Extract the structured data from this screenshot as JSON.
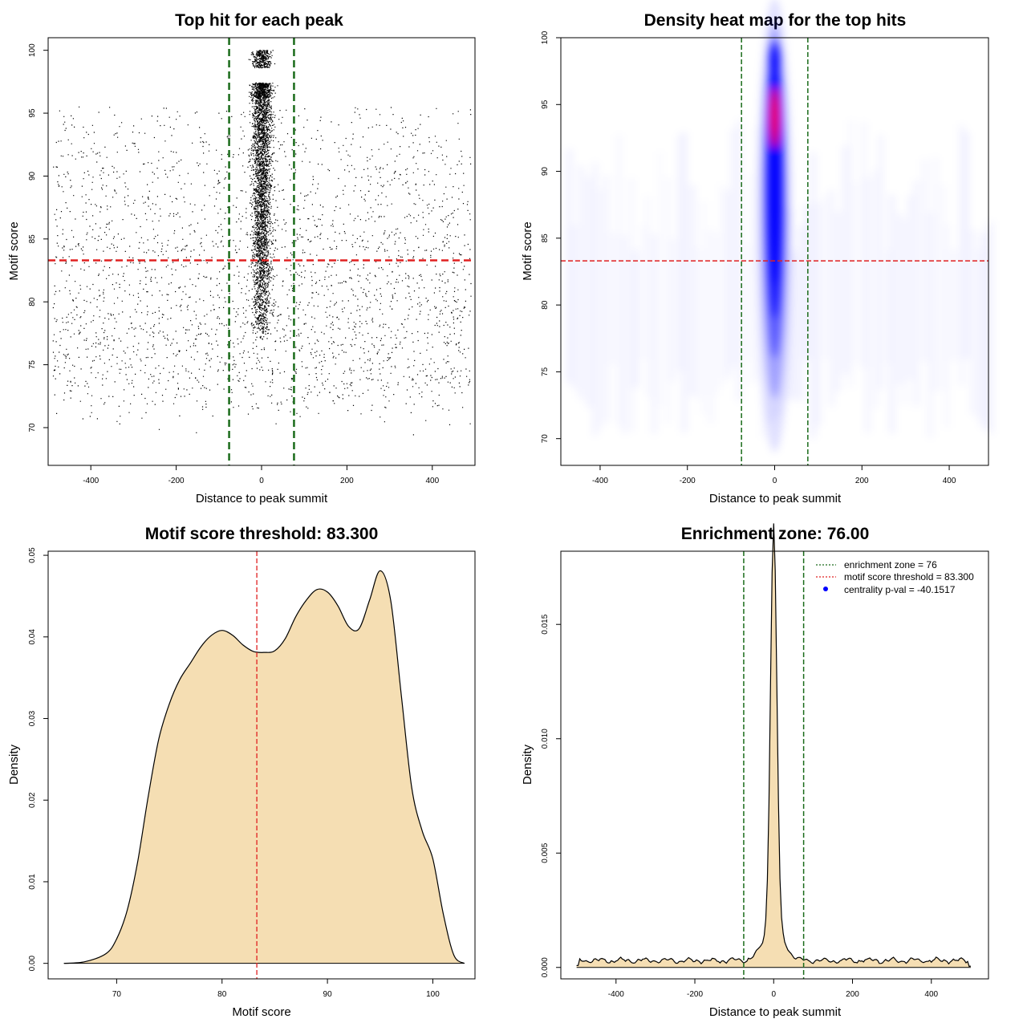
{
  "colors": {
    "points": "#000000",
    "threshold_line": "#e02020",
    "zone_line": "#1a6b1a",
    "density_fill": "#f5deb3",
    "heat_low": "#ffffff",
    "heat_mid": "#0000ff",
    "heat_high": "#ff0000",
    "legend_dot": "#0000ff"
  },
  "chart_data": [
    {
      "type": "scatter",
      "title": "Top hit for each peak",
      "xlabel": "Distance to peak summit",
      "ylabel": "Motif score",
      "xlim": [
        -500,
        500
      ],
      "ylim": [
        67,
        101
      ],
      "xticks": [
        -400,
        -200,
        0,
        200,
        400
      ],
      "yticks": [
        70,
        75,
        80,
        85,
        90,
        95,
        100
      ],
      "hlines": [
        83.3
      ],
      "vlines": [
        -76,
        76
      ],
      "grid": false,
      "approx_point_count": 6500,
      "description_background": "uniform scatter over distance -490..490, motif score ~68..95, denser below 84",
      "description_center": "dense column at distance 0 (sd ~12), motif score ~77..100"
    },
    {
      "type": "heatmap",
      "title": "Density heat map for the top hits",
      "xlabel": "Distance to peak summit",
      "ylabel": "Motif score",
      "xlim": [
        -490,
        490
      ],
      "ylim": [
        68,
        100
      ],
      "xticks": [
        -400,
        -200,
        0,
        200,
        400
      ],
      "yticks": [
        70,
        75,
        80,
        85,
        90,
        95,
        100
      ],
      "hlines": [
        83.3
      ],
      "vlines": [
        -76,
        76
      ],
      "hotspot": {
        "x": 0,
        "y": 94,
        "level": "max"
      },
      "grid": false
    },
    {
      "type": "area",
      "title": "Motif score threshold: 83.300",
      "xlabel": "Motif score",
      "ylabel": "Density",
      "xlim": [
        63.5,
        104
      ],
      "ylim": [
        -0.0019,
        0.0505
      ],
      "xticks": [
        70,
        80,
        90,
        100
      ],
      "yticks": [
        0.0,
        0.01,
        0.02,
        0.03,
        0.04,
        0.05
      ],
      "ytick_labels": [
        "0.00",
        "0.01",
        "0.02",
        "0.03",
        "0.04",
        "0.05"
      ],
      "vlines": [
        83.3
      ],
      "x": [
        65,
        67,
        69,
        70,
        71,
        72,
        73,
        74,
        75,
        76,
        77,
        78,
        79,
        80,
        81,
        82,
        83,
        84,
        85,
        86,
        87,
        88,
        89,
        90,
        91,
        92,
        93,
        94,
        95,
        96,
        97,
        98,
        99,
        100,
        101,
        102,
        103
      ],
      "y": [
        0.0,
        0.0002,
        0.0012,
        0.003,
        0.0065,
        0.0125,
        0.0205,
        0.0275,
        0.0318,
        0.0348,
        0.0368,
        0.0388,
        0.0402,
        0.0408,
        0.0402,
        0.039,
        0.0382,
        0.0381,
        0.0383,
        0.0398,
        0.0425,
        0.0445,
        0.0458,
        0.0455,
        0.0438,
        0.0413,
        0.041,
        0.0445,
        0.0481,
        0.0445,
        0.033,
        0.0215,
        0.0162,
        0.0128,
        0.006,
        0.001,
        0.0
      ],
      "grid": false
    },
    {
      "type": "area",
      "title": "Enrichment zone: 76.00",
      "xlabel": "Distance to peak summit",
      "ylabel": "Density",
      "xlim": [
        -540,
        545
      ],
      "ylim": [
        -0.0005,
        0.0182
      ],
      "xticks": [
        -400,
        -200,
        0,
        200,
        400
      ],
      "yticks": [
        0.0,
        0.005,
        0.01,
        0.015
      ],
      "ytick_labels": [
        "0.000",
        "0.005",
        "0.010",
        "0.015"
      ],
      "vlines": [
        -76,
        76
      ],
      "peak": {
        "x": 0,
        "y": 0.0177
      },
      "baseline_density": 0.0003,
      "grid": false,
      "legend": {
        "position": "top-right",
        "entries": [
          {
            "label": "enrichment zone = 76",
            "style": "dotted",
            "color": "#1a6b1a"
          },
          {
            "label": "motif score threshold = 83.300",
            "style": "dotted",
            "color": "#e02020"
          },
          {
            "label": "centrality p-val = -40.1517",
            "style": "dot",
            "color": "#0000ff"
          }
        ]
      }
    }
  ]
}
